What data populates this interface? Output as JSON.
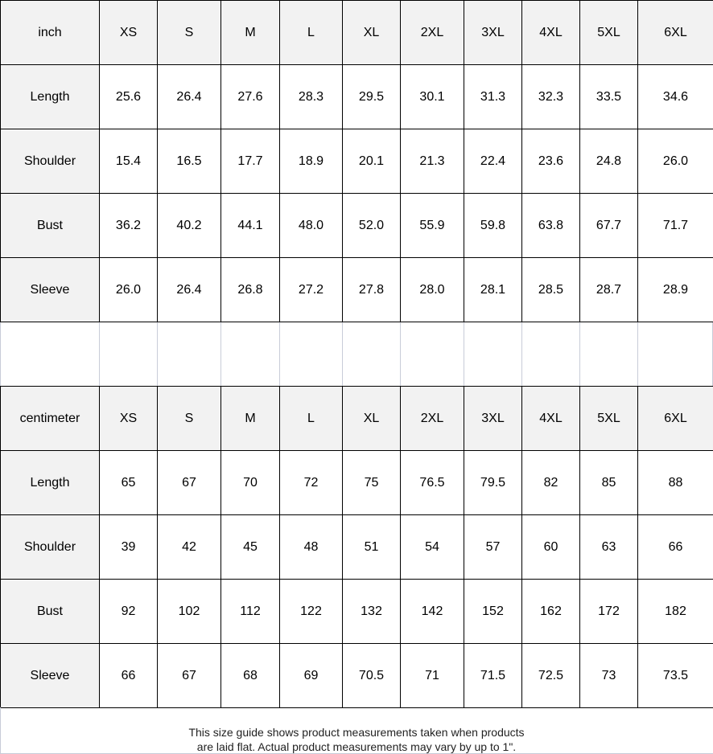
{
  "sizes": [
    "XS",
    "S",
    "M",
    "L",
    "XL",
    "2XL",
    "3XL",
    "4XL",
    "5XL",
    "6XL"
  ],
  "inch_table": {
    "unit_label": "inch",
    "rows": [
      {
        "label": "Length",
        "values": [
          "25.6",
          "26.4",
          "27.6",
          "28.3",
          "29.5",
          "30.1",
          "31.3",
          "32.3",
          "33.5",
          "34.6"
        ]
      },
      {
        "label": "Shoulder",
        "values": [
          "15.4",
          "16.5",
          "17.7",
          "18.9",
          "20.1",
          "21.3",
          "22.4",
          "23.6",
          "24.8",
          "26.0"
        ]
      },
      {
        "label": "Bust",
        "values": [
          "36.2",
          "40.2",
          "44.1",
          "48.0",
          "52.0",
          "55.9",
          "59.8",
          "63.8",
          "67.7",
          "71.7"
        ]
      },
      {
        "label": "Sleeve",
        "values": [
          "26.0",
          "26.4",
          "26.8",
          "27.2",
          "27.8",
          "28.0",
          "28.1",
          "28.5",
          "28.7",
          "28.9"
        ]
      }
    ]
  },
  "cm_table": {
    "unit_label": "centimeter",
    "rows": [
      {
        "label": "Length",
        "values": [
          "65",
          "67",
          "70",
          "72",
          "75",
          "76.5",
          "79.5",
          "82",
          "85",
          "88"
        ]
      },
      {
        "label": "Shoulder",
        "values": [
          "39",
          "42",
          "45",
          "48",
          "51",
          "54",
          "57",
          "60",
          "63",
          "66"
        ]
      },
      {
        "label": "Bust",
        "values": [
          "92",
          "102",
          "112",
          "122",
          "132",
          "142",
          "152",
          "162",
          "172",
          "182"
        ]
      },
      {
        "label": "Sleeve",
        "values": [
          "66",
          "67",
          "68",
          "69",
          "70.5",
          "71",
          "71.5",
          "72.5",
          "73",
          "73.5"
        ]
      }
    ]
  },
  "note": {
    "line1": "This size guide shows product measurements taken when products",
    "line2": "are laid flat. Actual product measurements may vary by up to 1\"."
  },
  "colors": {
    "header_bg": "#f2f2f2",
    "border": "#000000",
    "gap_lines": "#c8ccd8"
  }
}
